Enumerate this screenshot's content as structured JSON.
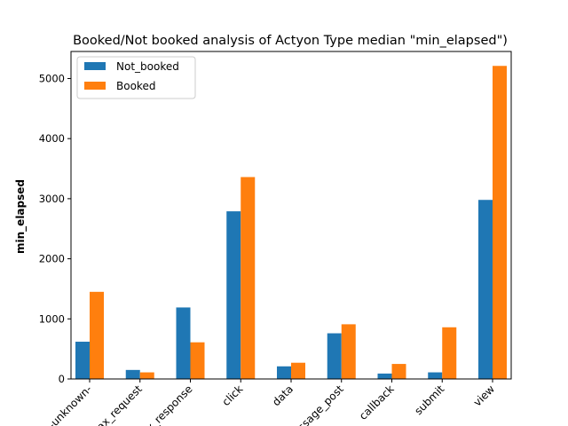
{
  "chart_data": {
    "type": "bar",
    "title": "Booked/Not booked analysis of Actyon Type median \"min_elapsed\")",
    "xlabel": "",
    "ylabel": "min_elapsed",
    "categories": [
      "-unknown-",
      "ajax_request",
      "ajax_response",
      "click",
      "data",
      "message_post",
      "callback",
      "submit",
      "view"
    ],
    "series": [
      {
        "name": "Not_booked",
        "color": "#1f77b4",
        "values": [
          620,
          150,
          1190,
          2790,
          210,
          760,
          90,
          110,
          2980
        ]
      },
      {
        "name": "Booked",
        "color": "#ff7f0e",
        "values": [
          1450,
          110,
          610,
          3360,
          270,
          910,
          250,
          860,
          5210
        ]
      }
    ],
    "ylim": [
      0,
      5450
    ],
    "yticks": [
      0,
      1000,
      2000,
      3000,
      4000,
      5000
    ],
    "legend_position": "top-left",
    "grid": false
  }
}
